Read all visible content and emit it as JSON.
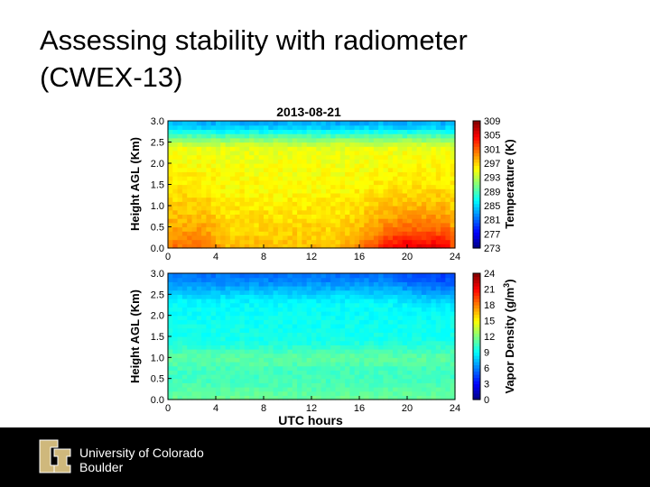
{
  "slide": {
    "title_line1": "Assessing stability with radiometer",
    "title_line2": "(CWEX-13)"
  },
  "footer": {
    "university_line1": "University of Colorado",
    "university_line2": "Boulder"
  },
  "colors": {
    "footer_bg": "#000000",
    "logo_gold": "#cfb87c",
    "title_text": "#000000"
  },
  "chart_data": [
    {
      "type": "heatmap",
      "title": "2013-08-21",
      "xlabel": "",
      "ylabel": "Height AGL (Km)",
      "colorbar_label": "Temperature (K)",
      "x_ticks": [
        0,
        4,
        8,
        12,
        16,
        20,
        24
      ],
      "y_ticks": [
        0.0,
        0.5,
        1.0,
        1.5,
        2.0,
        2.5,
        3.0
      ],
      "colorbar_ticks": [
        273,
        277,
        281,
        285,
        289,
        293,
        297,
        301,
        305,
        309
      ],
      "xlim": [
        0,
        24
      ],
      "ylim": [
        0.0,
        3.0
      ],
      "clim": [
        273,
        309
      ]
    },
    {
      "type": "heatmap",
      "title": "",
      "xlabel": "UTC hours",
      "ylabel": "Height AGL (Km)",
      "colorbar_label": "Vapor Density (g/m",
      "colorbar_label_sup": "3",
      "colorbar_label_end": ")",
      "x_ticks": [
        0,
        4,
        8,
        12,
        16,
        20,
        24
      ],
      "y_ticks": [
        0.0,
        0.5,
        1.0,
        1.5,
        2.0,
        2.5,
        3.0
      ],
      "colorbar_ticks": [
        0,
        3,
        6,
        9,
        12,
        15,
        18,
        21,
        24
      ],
      "xlim": [
        0,
        24
      ],
      "ylim": [
        0.0,
        3.0
      ],
      "clim": [
        0,
        24
      ]
    }
  ]
}
